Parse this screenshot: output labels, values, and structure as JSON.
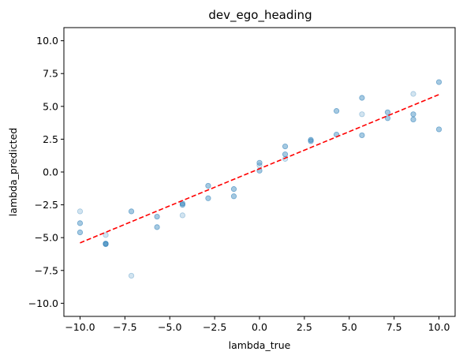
{
  "chart_data": {
    "type": "scatter",
    "title": "dev_ego_heading",
    "xlabel": "lambda_true",
    "ylabel": "lambda_predicted",
    "xlim": [
      -10.9,
      10.9
    ],
    "ylim": [
      -11,
      11
    ],
    "xticks": [
      -10.0,
      -7.5,
      -5.0,
      -2.5,
      0.0,
      2.5,
      5.0,
      7.5,
      10.0
    ],
    "xtick_labels": [
      "−10.0",
      "−7.5",
      "−5.0",
      "−2.5",
      "0.0",
      "2.5",
      "5.0",
      "7.5",
      "10.0"
    ],
    "yticks": [
      -10.0,
      -7.5,
      -5.0,
      -2.5,
      0.0,
      2.5,
      5.0,
      7.5,
      10.0
    ],
    "ytick_labels": [
      "−10.0",
      "−7.5",
      "−5.0",
      "−2.5",
      "0.0",
      "2.5",
      "5.0",
      "7.5",
      "10.0"
    ],
    "grid": false,
    "point_color": "#1f77b4",
    "fit_line_color": "#ff0000",
    "points": [
      {
        "x": -10.0,
        "y": -3.0,
        "alpha": 0.2
      },
      {
        "x": -10.0,
        "y": -3.9,
        "alpha": 0.4
      },
      {
        "x": -10.0,
        "y": -4.6,
        "alpha": 0.4
      },
      {
        "x": -8.57,
        "y": -4.8,
        "alpha": 0.2
      },
      {
        "x": -8.57,
        "y": -5.45,
        "alpha": 0.45
      },
      {
        "x": -8.57,
        "y": -5.5,
        "alpha": 0.45
      },
      {
        "x": -7.14,
        "y": -3.0,
        "alpha": 0.4
      },
      {
        "x": -7.14,
        "y": -7.9,
        "alpha": 0.2
      },
      {
        "x": -5.71,
        "y": -3.4,
        "alpha": 0.4
      },
      {
        "x": -5.71,
        "y": -4.2,
        "alpha": 0.4
      },
      {
        "x": -4.29,
        "y": -2.4,
        "alpha": 0.4
      },
      {
        "x": -4.29,
        "y": -2.5,
        "alpha": 0.4
      },
      {
        "x": -4.29,
        "y": -3.3,
        "alpha": 0.2
      },
      {
        "x": -2.86,
        "y": -1.05,
        "alpha": 0.4
      },
      {
        "x": -2.86,
        "y": -2.0,
        "alpha": 0.4
      },
      {
        "x": -1.43,
        "y": -1.3,
        "alpha": 0.4
      },
      {
        "x": -1.43,
        "y": -1.85,
        "alpha": 0.4
      },
      {
        "x": 0.0,
        "y": 0.7,
        "alpha": 0.4
      },
      {
        "x": 0.0,
        "y": 0.5,
        "alpha": 0.2
      },
      {
        "x": 0.0,
        "y": 0.1,
        "alpha": 0.4
      },
      {
        "x": 1.43,
        "y": 1.95,
        "alpha": 0.4
      },
      {
        "x": 1.43,
        "y": 1.35,
        "alpha": 0.4
      },
      {
        "x": 1.43,
        "y": 1.0,
        "alpha": 0.2
      },
      {
        "x": 2.86,
        "y": 2.45,
        "alpha": 0.4
      },
      {
        "x": 2.86,
        "y": 2.35,
        "alpha": 0.4
      },
      {
        "x": 4.29,
        "y": 4.65,
        "alpha": 0.4
      },
      {
        "x": 4.29,
        "y": 2.85,
        "alpha": 0.4
      },
      {
        "x": 5.71,
        "y": 5.65,
        "alpha": 0.4
      },
      {
        "x": 5.71,
        "y": 4.4,
        "alpha": 0.2
      },
      {
        "x": 5.71,
        "y": 2.8,
        "alpha": 0.4
      },
      {
        "x": 7.14,
        "y": 4.55,
        "alpha": 0.4
      },
      {
        "x": 7.14,
        "y": 4.1,
        "alpha": 0.4
      },
      {
        "x": 8.57,
        "y": 5.95,
        "alpha": 0.2
      },
      {
        "x": 8.57,
        "y": 4.4,
        "alpha": 0.4
      },
      {
        "x": 8.57,
        "y": 4.0,
        "alpha": 0.4
      },
      {
        "x": 10.0,
        "y": 6.85,
        "alpha": 0.4
      },
      {
        "x": 10.0,
        "y": 3.25,
        "alpha": 0.4
      }
    ],
    "fit_line": {
      "x": [
        -10.0,
        10.0
      ],
      "y": [
        -5.4,
        5.9
      ]
    }
  }
}
